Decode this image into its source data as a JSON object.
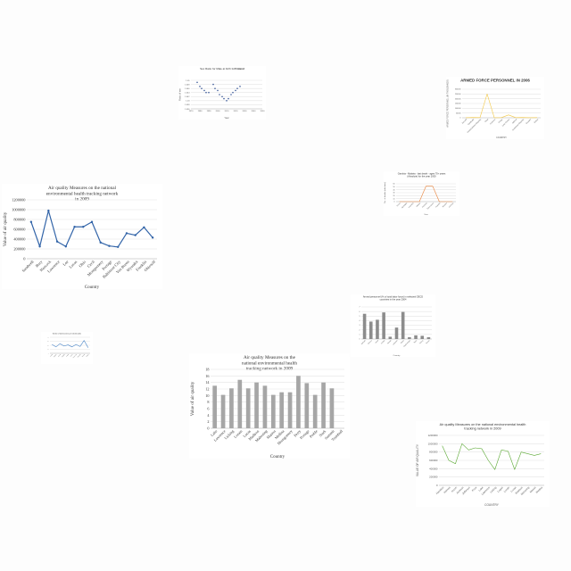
{
  "charts": [
    {
      "id": "c1",
      "type": "scatter",
      "title": "Sex Ratio for Male at birth for ",
      "title_bold": "Finland",
      "xlabel": "Year",
      "ylabel": "Ratio of sex",
      "xlim": [
        1970,
        2050
      ],
      "ylim": [
        1.036,
        1.05
      ],
      "yticks": [
        1.036,
        1.038,
        1.04,
        1.042,
        1.044,
        1.046,
        1.048,
        1.05
      ],
      "xticks": [
        1970,
        1980,
        1990,
        2000,
        2010,
        2020,
        2030,
        2040,
        2050
      ],
      "color": "#3c5a99",
      "x": [
        1977,
        1980,
        1982,
        1985,
        1987,
        1990,
        1995,
        1997,
        2000,
        2002,
        2005,
        2007,
        2010,
        2012,
        2015,
        2017,
        2020,
        2022,
        2025
      ],
      "values": [
        1.049,
        1.047,
        1.046,
        1.045,
        1.044,
        1.044,
        1.048,
        1.046,
        1.045,
        1.043,
        1.042,
        1.041,
        1.04,
        1.041,
        1.043,
        1.044,
        1.045,
        1.046,
        1.047
      ]
    },
    {
      "id": "c2",
      "type": "line",
      "title": "ARMED FORCE PERSONNEL IN 2006",
      "xlabel": "COUNTRY",
      "ylabel": "ARMED FORCE PERSONNEL (IN THOUSANDS)",
      "ylim": [
        0,
        300000
      ],
      "yticks": [
        0,
        50000,
        100000,
        150000,
        200000,
        250000,
        300000
      ],
      "color": "#f2c744",
      "categories": [
        "Burundi",
        "Cambodia",
        "Central African Republic",
        "Chad",
        "Comoros",
        "Congo",
        "Cote d'Ivoire",
        "Djibouti",
        "Dominican Republic",
        "Ecuador",
        "Eritrea"
      ],
      "values": [
        1000,
        3000,
        2000,
        250000,
        1000,
        2000,
        30000,
        2000,
        3000,
        1000,
        2000
      ]
    },
    {
      "id": "c3",
      "type": "line",
      "title": "Air quality Measures on the national environmental health tracking network in 2009",
      "xlabel": "Country",
      "ylabel": "Value of air quality",
      "ylim": [
        0,
        1200000
      ],
      "yticks": [
        0,
        200000,
        400000,
        600000,
        800000,
        1000000,
        1200000
      ],
      "color": "#3264a8",
      "categories": [
        "Sandwell",
        "Bury",
        "Hancock",
        "Lawrence",
        "Lee",
        "Lucas",
        "Ohio",
        "Cecil",
        "Montgomery",
        "Portage",
        "Baltimore City",
        "Van Buren",
        "Wyandot",
        "Franklin",
        "Ohiosolf"
      ],
      "values": [
        750000,
        250000,
        980000,
        350000,
        250000,
        650000,
        650000,
        750000,
        330000,
        260000,
        240000,
        520000,
        480000,
        640000,
        430000
      ]
    },
    {
      "id": "c4",
      "type": "line",
      "title": "Gambia - Malaria - last death - ages 70+ years (Absolute) for the year 2000",
      "xlabel": "Year",
      "ylabel": "No. of deaths (absolute)",
      "ylim": [
        0,
        60
      ],
      "yticks": [
        0,
        10,
        20,
        30,
        40,
        50,
        60
      ],
      "color": "#e8823a",
      "categories": [
        "Stroke",
        "Meningitis",
        "HIV/AIDS",
        "Malaria",
        "Intestinal",
        "Tuberculosis",
        "Hepatitis",
        "Measles",
        "Cirrhosis"
      ],
      "values": [
        0,
        0,
        0,
        0,
        52,
        52,
        0,
        0,
        0
      ]
    },
    {
      "id": "c5",
      "type": "bar",
      "title": "Armed personnel (% of total labor force) in selected OECD countries in the year 2004",
      "xlabel": "Country",
      "ylabel": "",
      "ylim": [
        0,
        7
      ],
      "yticks": [
        0,
        1,
        2,
        3,
        4,
        5,
        6,
        7
      ],
      "color": "#8c8c8c",
      "categories": [
        "Bahrain",
        "Greece",
        "Israel",
        "Jordan",
        "Kuwait",
        "Lebanon",
        "Oman",
        "Saudi Arabia",
        "Syria",
        "Turkey",
        "Yemen"
      ],
      "values": [
        5.5,
        3.8,
        4.2,
        5.8,
        0.5,
        2.5,
        5.9,
        0.4,
        0.8,
        0.7,
        0.4
      ]
    },
    {
      "id": "c6",
      "type": "line",
      "title": "Number of bank branches per 100,000 adults",
      "xlabel": "",
      "ylabel": "",
      "ylim": [
        0,
        40
      ],
      "yticks": [
        0,
        10,
        20,
        30,
        40
      ],
      "color": "#4a86c8",
      "categories": [
        "Austria",
        "Belgium",
        "Bosnia",
        "Bulgaria",
        "Croatia",
        "Cyprus",
        "Czech Rep",
        "Denmark",
        "Estonia",
        "Finland"
      ],
      "values": [
        22,
        16,
        24,
        18,
        21,
        16,
        22,
        17,
        32,
        14
      ]
    },
    {
      "id": "c7",
      "type": "bar",
      "title": "Air quality Measures on the national environmental health tracking network in 2009",
      "xlabel": "Country",
      "ylabel": "Value of air quality",
      "ylim": [
        0,
        18
      ],
      "yticks": [
        0,
        2,
        4,
        6,
        8,
        10,
        12,
        14,
        16,
        18
      ],
      "color": "#a6a6a6",
      "categories": [
        "Lake",
        "Lawrence",
        "Licking",
        "Lorain",
        "Lucas",
        "Madison",
        "Mahoning",
        "Marion",
        "Medina",
        "Montgomery",
        "Perry",
        "Portage",
        "Preble",
        "Stark",
        "Summit",
        "Trumbull"
      ],
      "values": [
        13,
        10.2,
        12.2,
        14.8,
        12.2,
        14,
        13,
        10.2,
        11,
        11,
        16,
        13.8,
        10.2,
        14,
        12.2,
        0
      ]
    },
    {
      "id": "c8",
      "type": "line",
      "title": "Air quality Measures on the national environmental health tracking network in 2009",
      "xlabel": "COUNTRY",
      "ylabel": "VALUE OF AIR QUALITY",
      "ylim": [
        0,
        1200000
      ],
      "yticks": [
        0,
        200000,
        400000,
        600000,
        800000,
        1000000,
        1200000
      ],
      "color": "#5aa832",
      "categories": [
        "Hamilton",
        "Holmes",
        "Huron",
        "Jackson",
        "Jefferson",
        "Knox",
        "Lake",
        "Lawrence",
        "Licking",
        "Logan",
        "Lorain",
        "Lucas",
        "Madison",
        "Mahoning",
        "Marion",
        "Medina"
      ],
      "values": [
        950000,
        600000,
        520000,
        1000000,
        850000,
        900000,
        880000,
        600000,
        380000,
        850000,
        820000,
        380000,
        800000,
        760000,
        720000,
        760000
      ]
    }
  ]
}
